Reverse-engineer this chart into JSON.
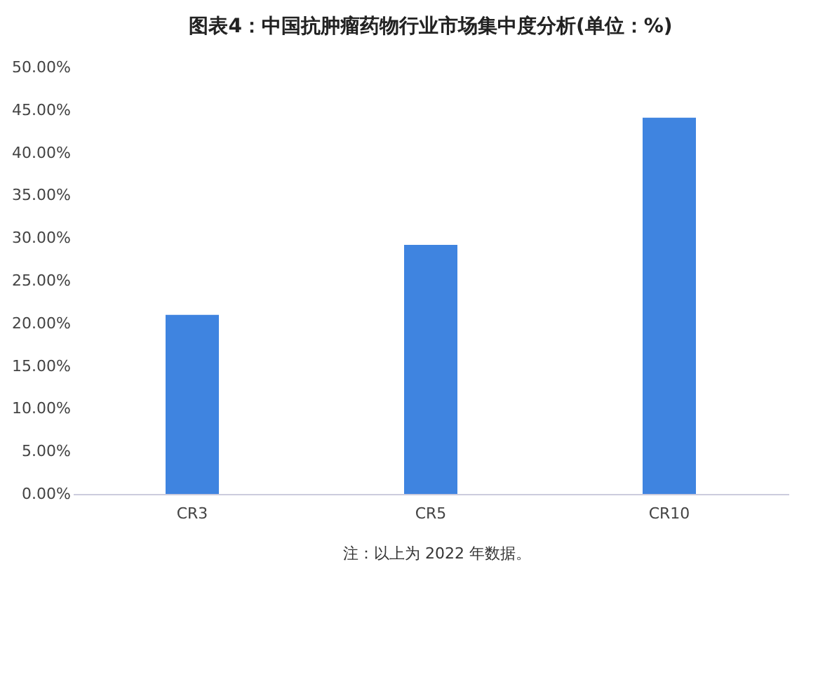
{
  "chart_data": {
    "type": "bar",
    "title": "图表4：中国抗肿瘤药物行业市场集中度分析(单位：%)",
    "categories": [
      "CR3",
      "CR5",
      "CR10"
    ],
    "values": [
      21.0,
      29.2,
      44.1
    ],
    "color": "#3f84e0",
    "ylim": [
      0,
      50
    ],
    "yticks": [
      {
        "value": 0,
        "label": "0.00%"
      },
      {
        "value": 5,
        "label": "5.00%"
      },
      {
        "value": 10,
        "label": "10.00%"
      },
      {
        "value": 15,
        "label": "15.00%"
      },
      {
        "value": 20,
        "label": "20.00%"
      },
      {
        "value": 25,
        "label": "25.00%"
      },
      {
        "value": 30,
        "label": "30.00%"
      },
      {
        "value": 35,
        "label": "35.00%"
      },
      {
        "value": 40,
        "label": "40.00%"
      },
      {
        "value": 45,
        "label": "45.00%"
      },
      {
        "value": 50,
        "label": "50.00%"
      }
    ],
    "grid": false,
    "annotations": [
      "注：以上为 2022 年数据。"
    ]
  }
}
